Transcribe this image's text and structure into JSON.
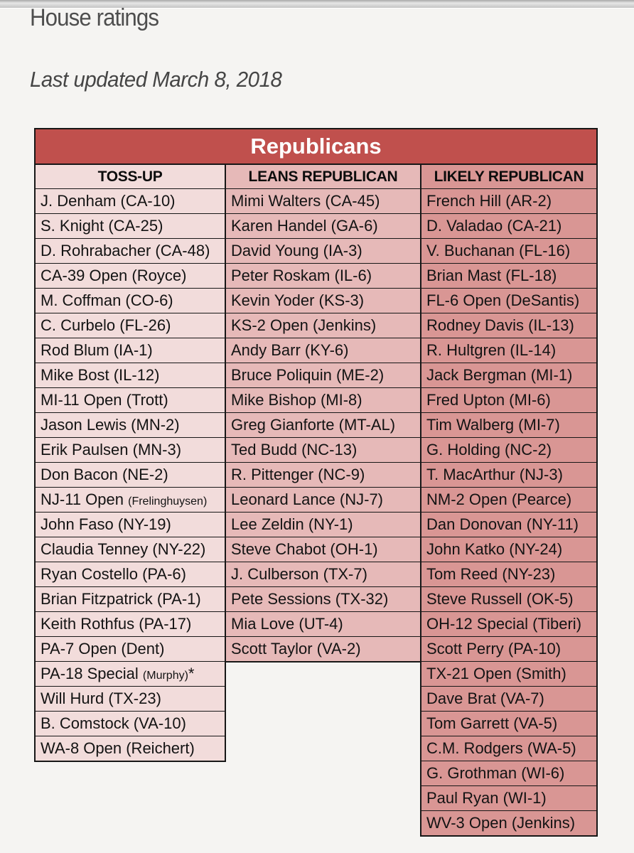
{
  "page": {
    "title": "House ratings",
    "subtitle": "Last updated March 8, 2018"
  },
  "table": {
    "banner": "Republicans",
    "colors": {
      "banner_bg": "#c0504d",
      "banner_text": "#ffffff",
      "border": "#171717",
      "toss_up_bg": "#f2dcdb",
      "leans_bg": "#e6b9b8",
      "likely_bg": "#d99694"
    },
    "columns": [
      {
        "header": "TOSS-UP",
        "color": "#f2dcdb",
        "cells": [
          "J. Denham (CA-10)",
          "S. Knight (CA-25)",
          "D. Rohrabacher (CA-48)",
          "CA-39 Open (Royce)",
          "M. Coffman (CO-6)",
          "C. Curbelo (FL-26)",
          "Rod Blum (IA-1)",
          "Mike Bost (IL-12)",
          "MI-11 Open (Trott)",
          "Jason Lewis (MN-2)",
          "Erik Paulsen (MN-3)",
          "Don Bacon (NE-2)",
          {
            "main": "NJ-11 Open ",
            "small": "(Frelinghuysen)"
          },
          "John Faso (NY-19)",
          "Claudia Tenney (NY-22)",
          "Ryan Costello (PA-6)",
          "Brian Fitzpatrick (PA-1)",
          "Keith Rothfus (PA-17)",
          "PA-7 Open (Dent)",
          {
            "main": "PA-18 Special ",
            "small": "(Murphy)",
            "suffix": "*"
          },
          "Will Hurd (TX-23)",
          "B. Comstock (VA-10)",
          "WA-8 Open (Reichert)"
        ]
      },
      {
        "header": "LEANS REPUBLICAN",
        "color": "#e6b9b8",
        "cells": [
          "Mimi Walters (CA-45)",
          "Karen Handel (GA-6)",
          "David Young (IA-3)",
          "Peter Roskam (IL-6)",
          "Kevin Yoder (KS-3)",
          "KS-2 Open (Jenkins)",
          "Andy Barr (KY-6)",
          "Bruce Poliquin (ME-2)",
          "Mike Bishop (MI-8)",
          "Greg Gianforte (MT-AL)",
          "Ted Budd (NC-13)",
          "R. Pittenger (NC-9)",
          "Leonard Lance (NJ-7)",
          "Lee Zeldin (NY-1)",
          "Steve Chabot (OH-1)",
          "J. Culberson (TX-7)",
          "Pete Sessions (TX-32)",
          "Mia Love (UT-4)",
          "Scott Taylor (VA-2)"
        ]
      },
      {
        "header": "LIKELY REPUBLICAN",
        "color": "#d99694",
        "cells": [
          "French Hill (AR-2)",
          "D. Valadao (CA-21)",
          "V. Buchanan (FL-16)",
          "Brian Mast (FL-18)",
          "FL-6 Open (DeSantis)",
          "Rodney Davis (IL-13)",
          "R. Hultgren (IL-14)",
          "Jack Bergman (MI-1)",
          "Fred Upton (MI-6)",
          "Tim Walberg (MI-7)",
          "G. Holding (NC-2)",
          "T. MacArthur (NJ-3)",
          "NM-2 Open (Pearce)",
          "Dan Donovan (NY-11)",
          "John Katko (NY-24)",
          "Tom Reed (NY-23)",
          "Steve Russell (OK-5)",
          "OH-12 Special (Tiberi)",
          "Scott Perry (PA-10)",
          "TX-21 Open (Smith)",
          "Dave Brat (VA-7)",
          "Tom Garrett (VA-5)",
          "C.M. Rodgers (WA-5)",
          "G. Grothman (WI-6)",
          "Paul Ryan (WI-1)",
          "WV-3 Open (Jenkins)"
        ]
      }
    ]
  }
}
